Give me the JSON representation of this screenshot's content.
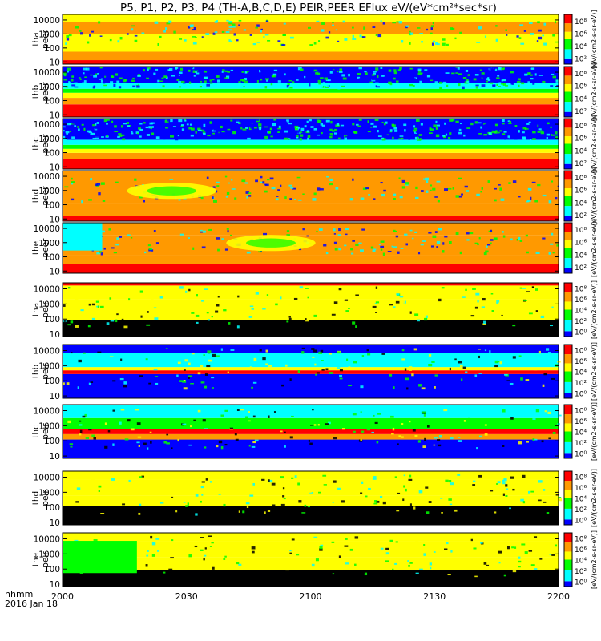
{
  "chart_data": {
    "type": "heatmap",
    "title": "P5, P1, P2, P3, P4 (TH-A,B,C,D,E) PEIR,PEER EFlux eV/(eV*cm²*sec*sr)",
    "x_axis": {
      "label_line1": "hhmm",
      "label_line2": "2016 Jan 18",
      "ticks": [
        "2000",
        "2030",
        "2100",
        "2130",
        "2200"
      ],
      "range_minutes": [
        0,
        120
      ]
    },
    "y_axis": {
      "scale": "log",
      "ticks_full": [
        "10",
        "100",
        "1000",
        "10000"
      ],
      "ticks_short": [
        "10",
        "100",
        "1000"
      ],
      "range_eV": [
        7,
        25000
      ]
    },
    "colorbar": {
      "scale": "log",
      "ticks_electron": [
        "10²",
        "10⁴",
        "10⁶",
        "10⁸"
      ],
      "ticks_ion": [
        "10⁰",
        "10²",
        "10⁴",
        "10⁶",
        "10⁸"
      ],
      "label": "[eV/(cm2-s-sr-eV)]"
    },
    "panels": [
      {
        "line1": "tha",
        "line2": "peer",
        "kind": "electron",
        "pattern": "a_e",
        "ticks": "full"
      },
      {
        "line1": "thb",
        "line2": "peer",
        "kind": "electron",
        "pattern": "b_e",
        "ticks": "full"
      },
      {
        "line1": "thc",
        "line2": "peer",
        "kind": "electron",
        "pattern": "c_e",
        "ticks": "full"
      },
      {
        "line1": "thd",
        "line2": "peer",
        "kind": "electron",
        "pattern": "d_e",
        "ticks": "full"
      },
      {
        "line1": "the",
        "line2": "peer",
        "kind": "electron",
        "pattern": "e_e",
        "ticks": "full"
      },
      {
        "line1": "tha",
        "line2": "peir",
        "kind": "ion",
        "pattern": "a_i",
        "ticks": "full"
      },
      {
        "line1": "thb",
        "line2": "peir",
        "kind": "ion",
        "pattern": "b_i",
        "ticks": "full"
      },
      {
        "line1": "thc",
        "line2": "peir",
        "kind": "ion",
        "pattern": "c_i",
        "ticks": "full"
      },
      {
        "line1": "thd",
        "line2": "peir",
        "kind": "ion",
        "pattern": "d_i",
        "ticks": "full"
      },
      {
        "line1": "the",
        "line2": "peir",
        "kind": "ion",
        "pattern": "e_i",
        "ticks": "full"
      }
    ],
    "colors": {
      "black": "#000000",
      "blue": "#0000ff",
      "cyan": "#00ffff",
      "green": "#00ff00",
      "yellow": "#ffff00",
      "orange": "#ff9900",
      "red": "#ff0000"
    },
    "grid": false,
    "legend": "colorbars right of each panel"
  }
}
